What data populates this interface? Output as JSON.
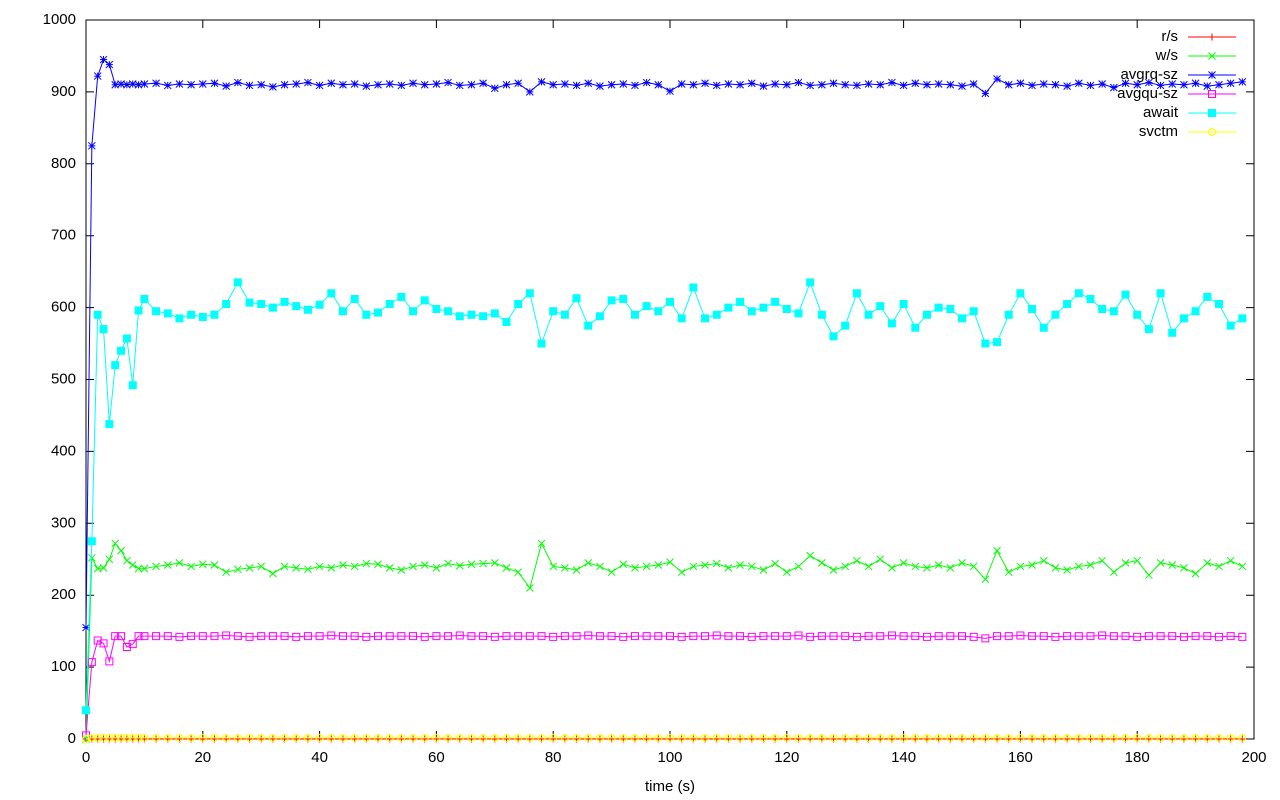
{
  "chart_data": {
    "type": "line",
    "xlabel": "time (s)",
    "x": [
      0,
      1,
      2,
      3,
      4,
      5,
      6,
      7,
      8,
      9,
      10,
      12,
      14,
      16,
      18,
      20,
      22,
      24,
      26,
      28,
      30,
      32,
      34,
      36,
      38,
      40,
      42,
      44,
      46,
      48,
      50,
      52,
      54,
      56,
      58,
      60,
      62,
      64,
      66,
      68,
      70,
      72,
      74,
      76,
      78,
      80,
      82,
      84,
      86,
      88,
      90,
      92,
      94,
      96,
      98,
      100,
      102,
      104,
      106,
      108,
      110,
      112,
      114,
      116,
      118,
      120,
      122,
      124,
      126,
      128,
      130,
      132,
      134,
      136,
      138,
      140,
      142,
      144,
      146,
      148,
      150,
      152,
      154,
      156,
      158,
      160,
      162,
      164,
      166,
      168,
      170,
      172,
      174,
      176,
      178,
      180,
      182,
      184,
      186,
      188,
      190,
      192,
      194,
      196,
      198
    ],
    "xlim": [
      0,
      200
    ],
    "ylim": [
      0,
      1000
    ],
    "xticks": [
      0,
      20,
      40,
      60,
      80,
      100,
      120,
      140,
      160,
      180,
      200
    ],
    "yticks": [
      0,
      100,
      200,
      300,
      400,
      500,
      600,
      700,
      800,
      900,
      1000
    ],
    "legend": "top right",
    "series": [
      {
        "name": "r/s",
        "color": "#ff0000",
        "marker": "plus",
        "values": [
          0,
          0,
          0,
          0,
          0,
          0,
          0,
          0,
          0,
          0,
          0,
          0,
          0,
          0,
          0,
          0,
          0,
          0,
          0,
          0,
          0,
          0,
          0,
          0,
          0,
          0,
          0,
          0,
          0,
          0,
          0,
          0,
          0,
          0,
          0,
          0,
          0,
          0,
          0,
          0,
          0,
          0,
          0,
          0,
          0,
          0,
          0,
          0,
          0,
          0,
          0,
          0,
          0,
          0,
          0,
          0,
          0,
          0,
          0,
          0,
          0,
          0,
          0,
          0,
          0,
          0,
          0,
          0,
          0,
          0,
          0,
          0,
          0,
          0,
          0,
          0,
          0,
          0,
          0,
          0,
          0,
          0,
          0,
          0,
          0,
          0,
          0,
          0,
          0,
          0,
          0,
          0,
          0,
          0,
          0,
          0,
          0,
          0,
          0,
          0,
          0,
          0,
          0,
          0,
          0
        ]
      },
      {
        "name": "w/s",
        "color": "#00ff00",
        "marker": "cross",
        "values": [
          0,
          252,
          237,
          238,
          250,
          272,
          262,
          248,
          242,
          237,
          237,
          240,
          242,
          245,
          240,
          243,
          242,
          232,
          236,
          238,
          240,
          230,
          240,
          238,
          236,
          240,
          238,
          242,
          240,
          244,
          243,
          238,
          235,
          240,
          242,
          238,
          244,
          241,
          243,
          244,
          245,
          238,
          232,
          210,
          272,
          240,
          238,
          235,
          245,
          240,
          232,
          243,
          238,
          240,
          242,
          246,
          232,
          240,
          242,
          244,
          238,
          242,
          240,
          235,
          244,
          232,
          240,
          255,
          245,
          235,
          240,
          248,
          240,
          250,
          238,
          245,
          240,
          238,
          242,
          238,
          245,
          240,
          222,
          262,
          232,
          240,
          242,
          248,
          238,
          235,
          240,
          242,
          248,
          232,
          245,
          248,
          228,
          245,
          242,
          238,
          230,
          245,
          240,
          248,
          240
        ]
      },
      {
        "name": "avgrq-sz",
        "color": "#0000ff",
        "marker": "star",
        "values": [
          155,
          825,
          922,
          945,
          938,
          910,
          911,
          910,
          911,
          910,
          911,
          912,
          909,
          911,
          910,
          911,
          912,
          908,
          913,
          909,
          910,
          907,
          910,
          911,
          913,
          909,
          912,
          910,
          911,
          908,
          910,
          911,
          909,
          912,
          910,
          911,
          913,
          909,
          910,
          912,
          905,
          910,
          912,
          900,
          914,
          910,
          911,
          909,
          912,
          908,
          910,
          911,
          909,
          913,
          910,
          901,
          911,
          910,
          912,
          909,
          911,
          910,
          912,
          908,
          911,
          910,
          913,
          909,
          910,
          912,
          910,
          909,
          911,
          910,
          913,
          909,
          912,
          910,
          911,
          910,
          908,
          911,
          898,
          918,
          910,
          912,
          909,
          911,
          910,
          908,
          912,
          909,
          911,
          906,
          912,
          910,
          913,
          909,
          911,
          910,
          912,
          908,
          910,
          912,
          914
        ]
      },
      {
        "name": "avgqu-sz",
        "color": "#ff00ff",
        "marker": "box",
        "values": [
          5,
          107,
          137,
          133,
          108,
          143,
          143,
          128,
          132,
          143,
          143,
          143,
          143,
          142,
          143,
          143,
          143,
          144,
          143,
          142,
          143,
          143,
          143,
          142,
          143,
          143,
          144,
          143,
          143,
          142,
          143,
          143,
          143,
          143,
          142,
          143,
          143,
          144,
          143,
          143,
          142,
          143,
          143,
          143,
          143,
          142,
          143,
          143,
          144,
          143,
          143,
          142,
          143,
          143,
          143,
          143,
          142,
          143,
          143,
          144,
          143,
          143,
          142,
          143,
          143,
          143,
          144,
          142,
          143,
          143,
          143,
          142,
          143,
          143,
          144,
          143,
          143,
          142,
          143,
          143,
          143,
          142,
          140,
          143,
          143,
          144,
          143,
          143,
          142,
          143,
          143,
          143,
          144,
          143,
          143,
          142,
          143,
          143,
          143,
          142,
          143,
          143,
          142,
          143,
          142
        ]
      },
      {
        "name": "await",
        "color": "#00ffff",
        "marker": "filledbox",
        "values": [
          40,
          275,
          590,
          570,
          438,
          520,
          540,
          557,
          492,
          596,
          612,
          595,
          592,
          585,
          590,
          587,
          590,
          605,
          635,
          607,
          605,
          600,
          608,
          602,
          597,
          604,
          620,
          595,
          612,
          590,
          593,
          605,
          615,
          595,
          610,
          598,
          595,
          588,
          590,
          588,
          592,
          580,
          605,
          620,
          550,
          595,
          590,
          613,
          575,
          588,
          610,
          612,
          590,
          602,
          595,
          608,
          585,
          628,
          585,
          590,
          600,
          608,
          595,
          600,
          608,
          598,
          592,
          635,
          590,
          560,
          575,
          620,
          590,
          602,
          578,
          605,
          572,
          590,
          600,
          598,
          585,
          595,
          550,
          552,
          590,
          620,
          598,
          572,
          590,
          605,
          620,
          612,
          598,
          595,
          618,
          590,
          570,
          620,
          565,
          585,
          595,
          615,
          605,
          575,
          585
        ]
      },
      {
        "name": "svctm",
        "color": "#ffff00",
        "marker": "circle",
        "values": [
          0,
          1.5,
          1.6,
          1.6,
          1.6,
          1.6,
          1.6,
          1.6,
          1.6,
          1.6,
          1.6,
          1.6,
          1.6,
          1.6,
          1.6,
          1.6,
          1.6,
          1.6,
          1.6,
          1.6,
          1.6,
          1.6,
          1.6,
          1.6,
          1.6,
          1.6,
          1.6,
          1.6,
          1.6,
          1.6,
          1.6,
          1.6,
          1.6,
          1.6,
          1.6,
          1.6,
          1.6,
          1.6,
          1.6,
          1.6,
          1.6,
          1.6,
          1.6,
          1.6,
          1.6,
          1.6,
          1.6,
          1.6,
          1.6,
          1.6,
          1.6,
          1.6,
          1.6,
          1.6,
          1.6,
          1.6,
          1.6,
          1.6,
          1.6,
          1.6,
          1.6,
          1.6,
          1.6,
          1.6,
          1.6,
          1.6,
          1.6,
          1.6,
          1.6,
          1.6,
          1.6,
          1.6,
          1.6,
          1.6,
          1.6,
          1.6,
          1.6,
          1.6,
          1.6,
          1.6,
          1.6,
          1.6,
          1.6,
          1.6,
          1.6,
          1.6,
          1.6,
          1.6,
          1.6,
          1.6,
          1.6,
          1.6,
          1.6,
          1.6,
          1.6,
          1.6,
          1.6,
          1.6,
          1.6,
          1.6,
          1.6,
          1.6,
          1.6,
          1.6,
          1.6
        ]
      }
    ]
  }
}
